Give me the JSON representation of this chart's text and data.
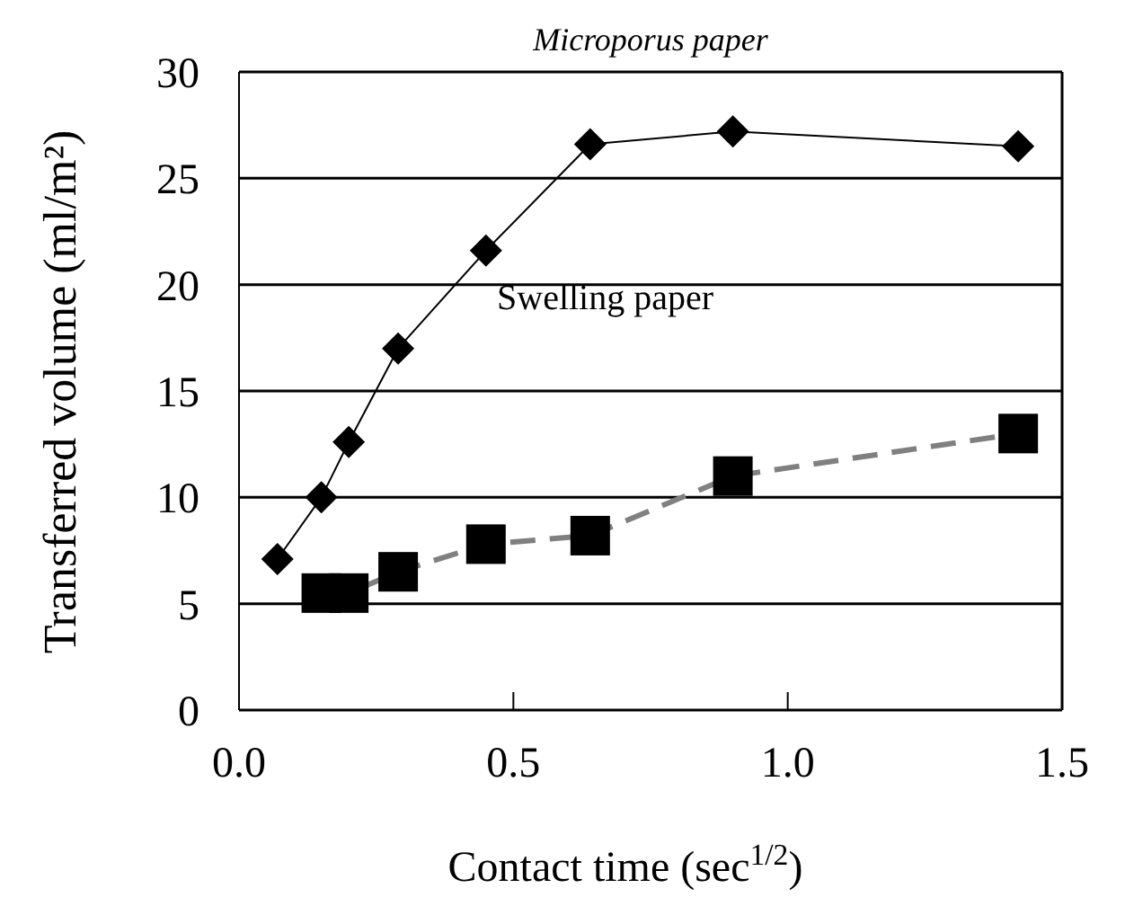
{
  "chart_data": {
    "type": "line",
    "title": "Microporus paper",
    "xlabel": "Contact time (sec$^{1/2}$)",
    "ylabel": "Transferred volume (ml/m²)",
    "annotations": [
      "Swelling paper"
    ],
    "xlim": [
      0,
      1.5
    ],
    "xticks": [
      {
        "value": 0,
        "label": "0.0"
      },
      {
        "value": 0.5,
        "label": "0.5"
      },
      {
        "value": 1,
        "label": "1.0"
      },
      {
        "value": 1.5,
        "label": "1.5"
      }
    ],
    "ylim": [
      0,
      30
    ],
    "yticks": [
      0,
      5,
      10,
      15,
      20,
      25,
      30
    ],
    "grid": "y",
    "series": [
      {
        "color": "#000000",
        "marker": "diamond",
        "line_style": "solid",
        "x": [
          0.07,
          0.15,
          0.2,
          0.29,
          0.45,
          0.64,
          0.9,
          1.42
        ],
        "values": [
          7.1,
          10,
          12.6,
          17,
          21.6,
          26.6,
          27.2,
          26.5
        ]
      },
      {
        "color": "#808080",
        "marker": "square",
        "line_style": "dashed",
        "x": [
          0.15,
          0.2,
          0.29,
          0.45,
          0.64,
          0.9,
          1.42
        ],
        "values": [
          5.5,
          5.5,
          6.5,
          7.8,
          8.2,
          11,
          13
        ]
      }
    ]
  }
}
